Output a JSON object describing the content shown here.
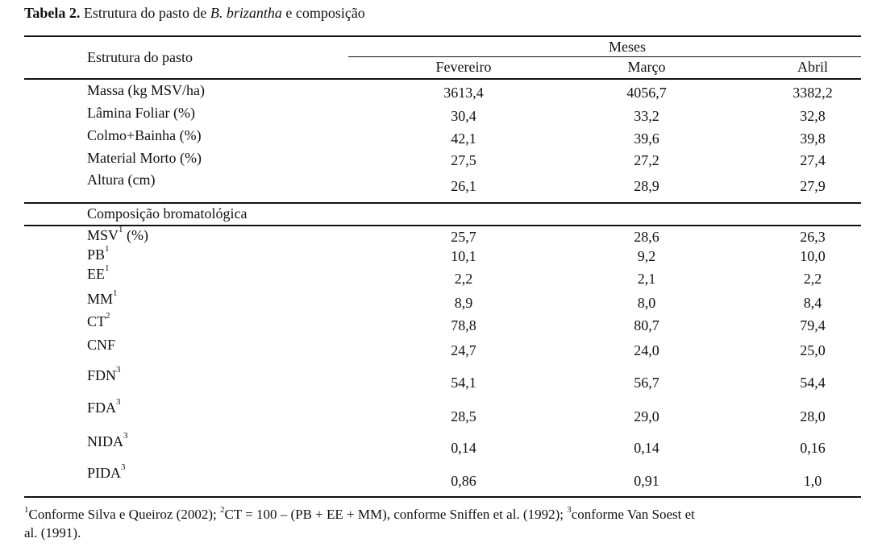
{
  "caption": {
    "label": "Tabela 2.",
    "text_before": " Estrutura do pasto de ",
    "species": "B. brizantha",
    "text_after": " e composição"
  },
  "header": {
    "row_label": "Estrutura do pasto",
    "group_label": "Meses",
    "months": [
      "Fevereiro",
      "Março",
      "Abril"
    ]
  },
  "estrutura": [
    {
      "label": "Massa (kg MSV/ha)",
      "values": [
        "3613,4",
        "4056,7",
        "3382,2"
      ]
    },
    {
      "label": "Lâmina Foliar (%)",
      "values": [
        "30,4",
        "33,2",
        "32,8"
      ]
    },
    {
      "label": "Colmo+Bainha (%)",
      "values": [
        "42,1",
        "39,6",
        "39,8"
      ]
    },
    {
      "label": "Material Morto (%)",
      "values": [
        "27,5",
        "27,2",
        "27,4"
      ]
    },
    {
      "label": "Altura (cm)",
      "values": [
        "26,1",
        "28,9",
        "27,9"
      ]
    }
  ],
  "section2_label": "Composição bromatológica",
  "composicao": [
    {
      "label": "MSV",
      "sup": "1",
      "suffix": " (%)",
      "values": [
        "25,7",
        "28,6",
        "26,3"
      ]
    },
    {
      "label": "PB",
      "sup": "1",
      "suffix": "",
      "values": [
        "10,1",
        "9,2",
        "10,0"
      ]
    },
    {
      "label": "EE",
      "sup": "1",
      "suffix": "",
      "values": [
        "2,2",
        "2,1",
        "2,2"
      ]
    },
    {
      "label": "MM",
      "sup": "1",
      "suffix": "",
      "values": [
        "8,9",
        "8,0",
        "8,4"
      ]
    },
    {
      "label": "CT",
      "sup": "2",
      "suffix": "",
      "values": [
        "78,8",
        "80,7",
        "79,4"
      ]
    },
    {
      "label": "CNF",
      "sup": "",
      "suffix": "",
      "values": [
        "24,7",
        "24,0",
        "25,0"
      ]
    },
    {
      "label": "FDN",
      "sup": "3",
      "suffix": "",
      "values": [
        "54,1",
        "56,7",
        "54,4"
      ]
    },
    {
      "label": "FDA",
      "sup": "3",
      "suffix": "",
      "values": [
        "28,5",
        "29,0",
        "28,0"
      ]
    },
    {
      "label": "NIDA",
      "sup": "3",
      "suffix": "",
      "values": [
        "0,14",
        "0,14",
        "0,16"
      ]
    },
    {
      "label": "PIDA",
      "sup": "3",
      "suffix": "",
      "values": [
        "0,86",
        "0,91",
        "1,0"
      ]
    }
  ],
  "footnote": {
    "n1": "1",
    "t1": "Conforme Silva e Queiroz (2002); ",
    "n2": "2",
    "t2": "CT = 100 – (PB + EE + MM), conforme Sniffen et al. (1992); ",
    "n3": "3",
    "t3": "conforme Van Soest et",
    "line2": "al. (1991)."
  }
}
